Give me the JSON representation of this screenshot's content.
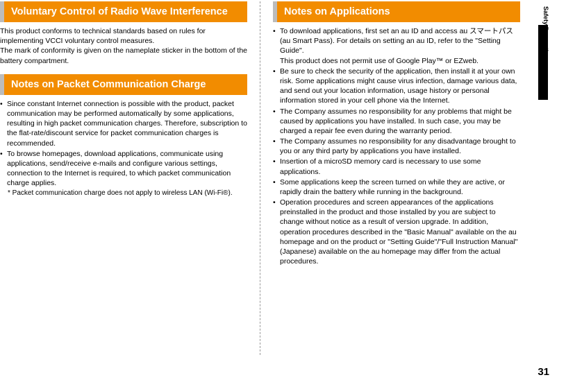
{
  "colors": {
    "header_bg": "#f28c00",
    "header_border": "#bcbcbc",
    "header_text": "#ffffff",
    "body_text": "#000000",
    "divider": "#999999",
    "tab_bg": "#000000"
  },
  "typography": {
    "header_fontsize_pt": 11,
    "body_fontsize_pt": 8,
    "footnote_fontsize_pt": 7.5,
    "sidetab_fontsize_pt": 7,
    "pagenum_fontsize_pt": 11
  },
  "left": {
    "section1": {
      "title": "Voluntary Control of Radio Wave Interference",
      "body": "This product conforms to technical standards based on rules for implementing VCCI voluntary control measures.\nThe mark of conformity is given on the nameplate sticker in the bottom of the battery compartment."
    },
    "section2": {
      "title": "Notes on Packet Communication Charge",
      "bullets": [
        "Since constant Internet connection is possible with the product, packet communication may be performed automatically by some applications, resulting in high packet communication charges. Therefore, subscription to the flat-rate/discount service for packet communication charges is recommended.",
        "To browse homepages, download applications, communicate using applications, send/receive e-mails and configure various settings, connection to the Internet is required, to which packet communication charge applies."
      ],
      "footnote": "* Packet communication charge does not apply to wireless LAN (Wi-Fi®)."
    }
  },
  "right": {
    "section1": {
      "title": "Notes on Applications",
      "bullets": [
        "To download applications, first set an au ID and access au スマートパス(au Smart Pass). For details on setting an au ID, refer to the \"Setting Guide\".\nThis product does not permit use of Google Play™ or EZweb.",
        "Be sure to check the security of the application, then install it at your own risk. Some applications might cause virus infection, damage various data, and send out your location information, usage history or personal information stored in your cell phone via the Internet.",
        "The Company assumes no responsibility for any problems that might be caused by applications you have installed. In such case, you may be charged a repair fee even during the warranty period.",
        "The Company assumes no responsibility for any disadvantage brought to you or any third party by applications you have installed.",
        "Insertion of a microSD memory card is necessary to use some applications.",
        "Some applications keep the screen turned on while they are active, or rapidly drain the battery while running in the background.",
        "Operation procedures and screen appearances of the applications preinstalled in the product and those installed by you are subject to change without notice as a result of version upgrade. In addition, operation procedures described in the \"Basic Manual\" available on the au homepage and on the product or \"Setting Guide\"/\"Full Instruction Manual\" (Japanese) available on the au homepage may differ from the actual procedures."
      ]
    }
  },
  "side_tab_label": "Safety Precautions",
  "page_number": "31"
}
